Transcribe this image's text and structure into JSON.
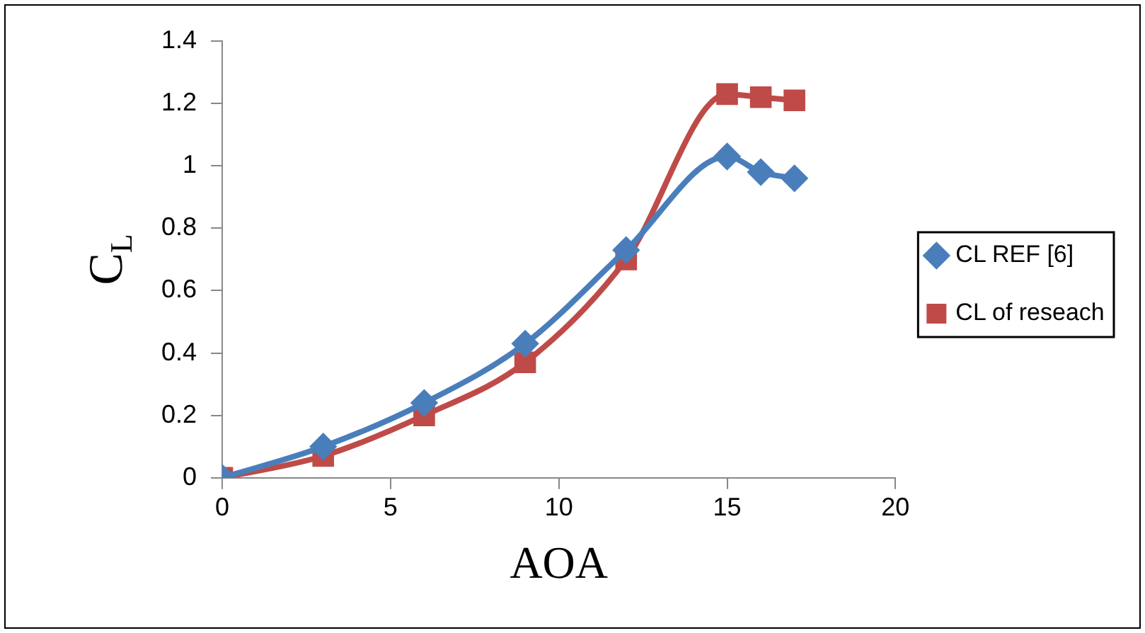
{
  "chart_data": {
    "type": "line",
    "xlabel": "AOA",
    "ylabel": "C$_{L}$",
    "x": [
      0,
      3,
      6,
      9,
      12,
      15,
      16,
      17
    ],
    "series": [
      {
        "name": "CL REF [6]",
        "color": "#4a7ebb",
        "marker": "diamond",
        "values": [
          0,
          0.1,
          0.24,
          0.43,
          0.73,
          1.03,
          0.98,
          0.96
        ]
      },
      {
        "name": "CL of reseach",
        "color": "#be4b48",
        "marker": "square",
        "values": [
          0,
          0.07,
          0.2,
          0.37,
          0.7,
          1.23,
          1.22,
          1.21
        ]
      }
    ],
    "xlim": [
      0,
      20
    ],
    "xticks": [
      0,
      5,
      10,
      15,
      20
    ],
    "ylim": [
      0,
      1.4
    ],
    "yticks": [
      0,
      0.2,
      0.4,
      0.6,
      0.8,
      1,
      1.2,
      1.4
    ],
    "grid": false,
    "legend": "right",
    "line_style": "solid"
  }
}
